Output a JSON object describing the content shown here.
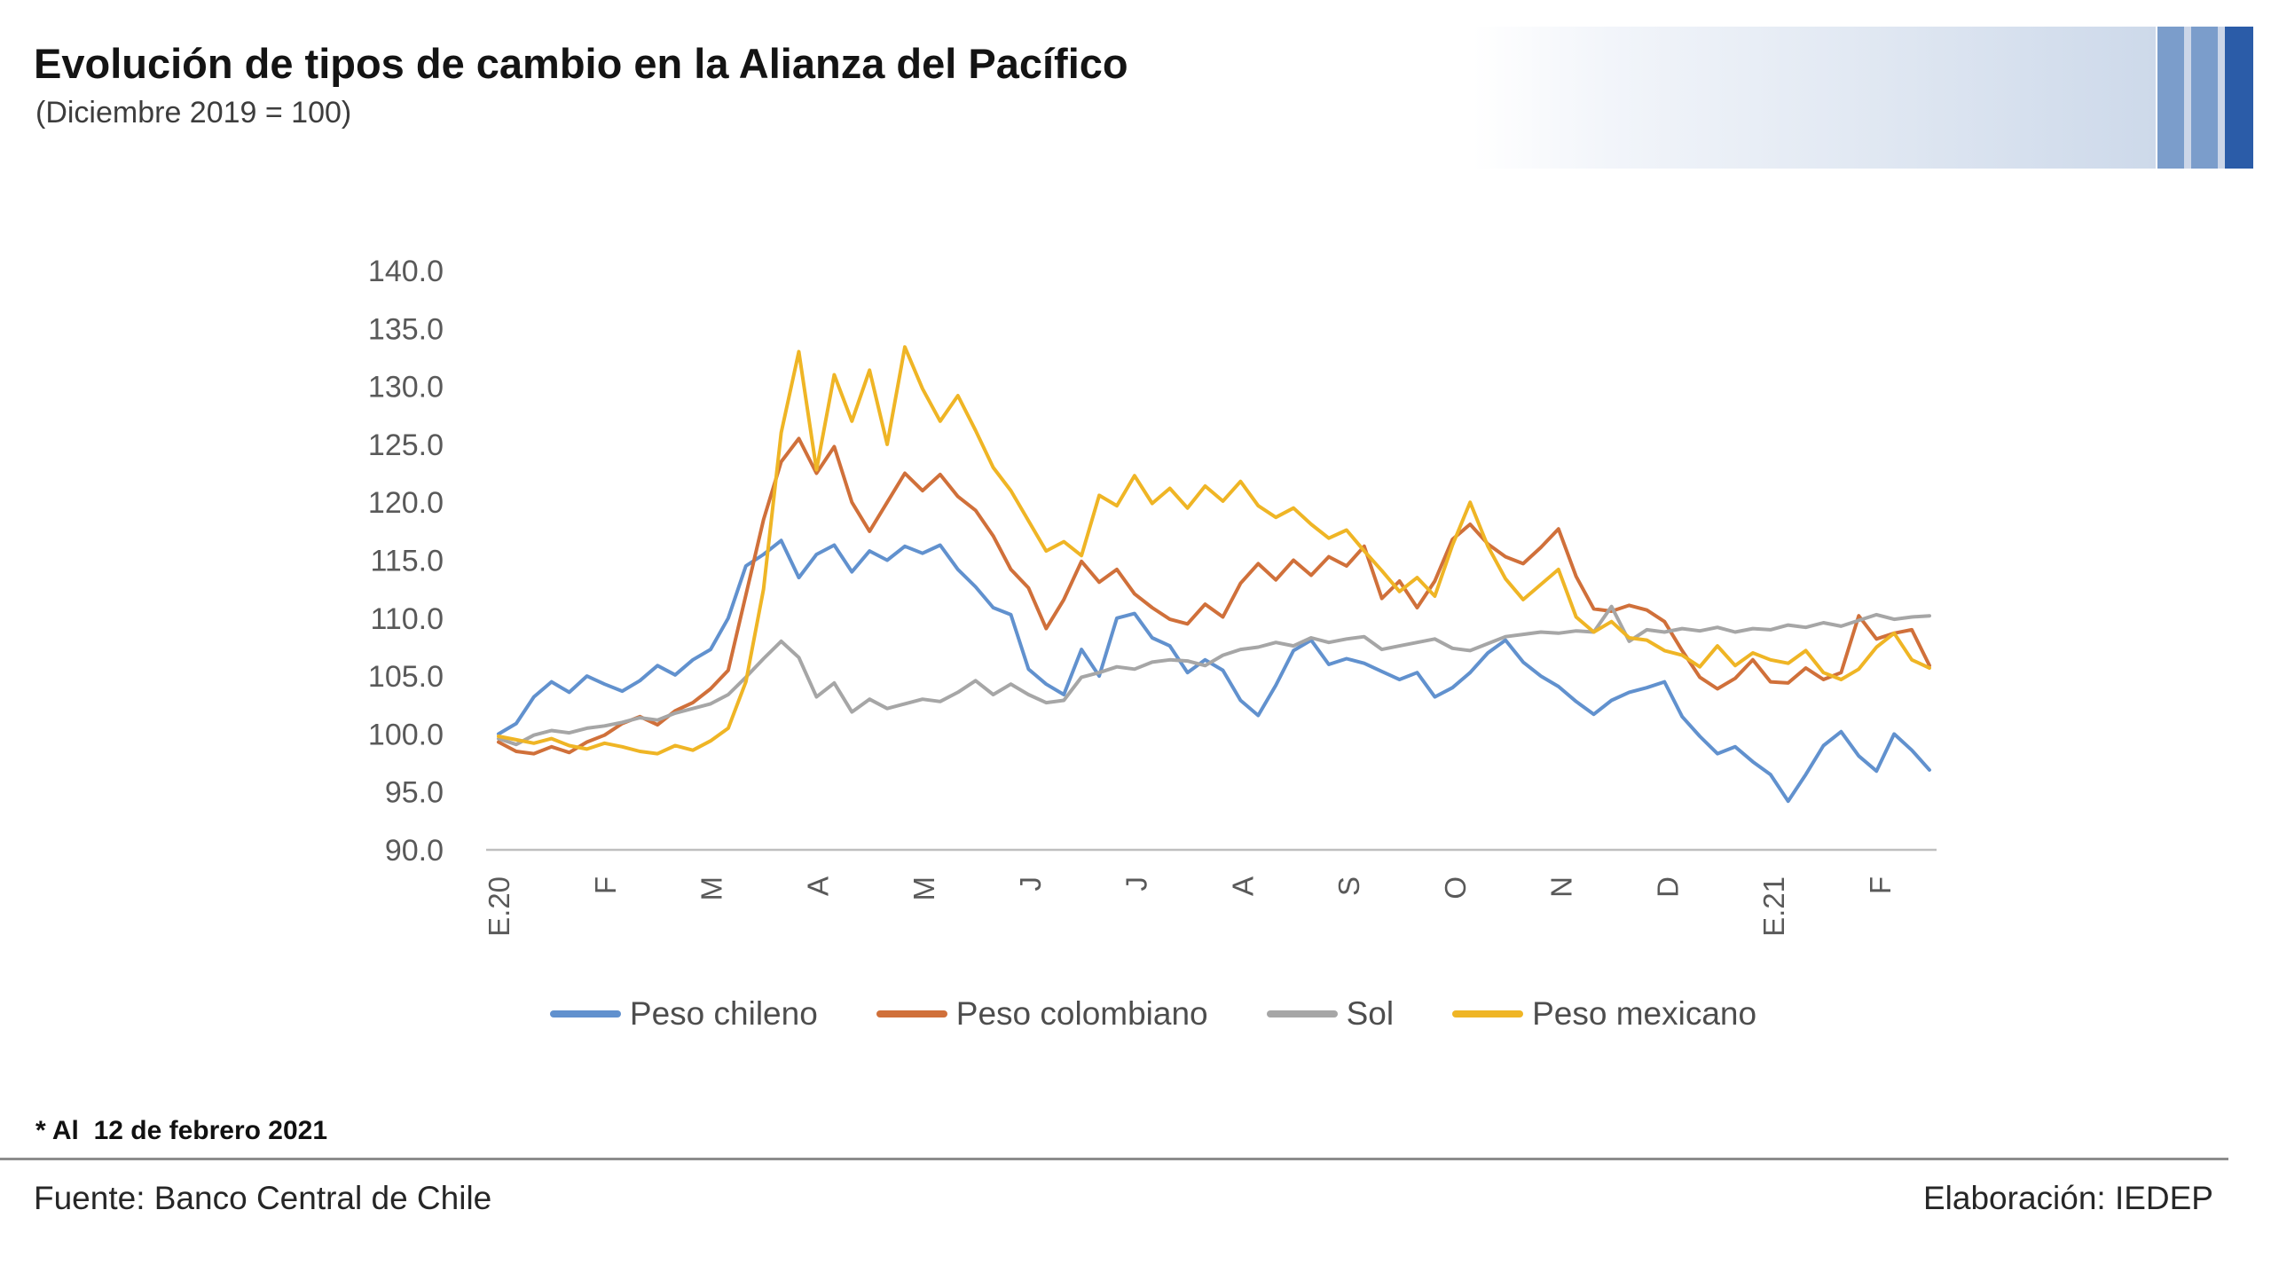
{
  "header": {
    "title": "Evolución de tipos de cambio en la Alianza del Pacífico",
    "subtitle": "(Diciembre 2019 = 100)"
  },
  "footer": {
    "footnote": "* Al  12 de febrero 2021",
    "source": "Fuente: Banco Central de Chile",
    "elaboration": "Elaboración: IEDEP"
  },
  "decor": {
    "banner_gradient_end": "#cdd9ea",
    "banner_stripe_light": "#7b9dcb",
    "banner_stripe_dark": "#2b5ca8",
    "axis_line_color": "#bfbfbf",
    "tick_label_color": "#595959"
  },
  "chart_data": {
    "type": "line",
    "title": "Evolución de tipos de cambio en la Alianza del Pacífico",
    "subtitle": "(Diciembre 2019 = 100)",
    "index_base": "Diciembre 2019 = 100",
    "x_tick_labels": [
      "E.20",
      "F",
      "M",
      "A",
      "M",
      "J",
      "J",
      "A",
      "S",
      "O",
      "N",
      "D",
      "E.21",
      "F"
    ],
    "x_description": "Daily data, enero 2020 - 12 febrero 2021 (sampled ~every 5 days)",
    "ylim": [
      90.0,
      140.0
    ],
    "ytick_step": 5.0,
    "ytick_labels": [
      "140.0",
      "135.0",
      "130.0",
      "125.0",
      "120.0",
      "115.0",
      "110.0",
      "105.0",
      "100.0",
      "95.0",
      "90.0"
    ],
    "grid": false,
    "legend_position": "bottom",
    "series": [
      {
        "name": "Peso chileno",
        "color": "#6191CE",
        "values": [
          100.0,
          100.9,
          103.2,
          104.5,
          103.6,
          105.0,
          104.3,
          103.7,
          104.6,
          105.9,
          105.1,
          106.4,
          107.3,
          110.0,
          114.5,
          115.5,
          116.7,
          113.5,
          115.5,
          116.3,
          114.0,
          115.8,
          115.0,
          116.2,
          115.6,
          116.3,
          114.2,
          112.7,
          110.9,
          110.3,
          105.6,
          104.3,
          103.4,
          107.3,
          105.0,
          110.0,
          110.4,
          108.3,
          107.6,
          105.3,
          106.4,
          105.5,
          102.9,
          101.6,
          104.2,
          107.2,
          108.1,
          106.0,
          106.5,
          106.1,
          105.4,
          104.7,
          105.3,
          103.2,
          104.0,
          105.3,
          107.0,
          108.1,
          106.2,
          105.0,
          104.1,
          102.8,
          101.7,
          102.9,
          103.6,
          104.0,
          104.5,
          101.5,
          99.8,
          98.3,
          98.9,
          97.6,
          96.5,
          94.2,
          96.5,
          99.0,
          100.2,
          98.1,
          96.8,
          100.0,
          98.6,
          96.9
        ]
      },
      {
        "name": "Peso colombiano",
        "color": "#D0703A",
        "values": [
          99.3,
          98.5,
          98.3,
          98.9,
          98.4,
          99.3,
          99.9,
          100.9,
          101.5,
          100.8,
          102.0,
          102.7,
          103.9,
          105.5,
          112.0,
          118.5,
          123.5,
          125.5,
          122.5,
          124.8,
          120.0,
          117.5,
          120.0,
          122.5,
          121.0,
          122.4,
          120.5,
          119.3,
          117.1,
          114.2,
          112.6,
          109.1,
          111.6,
          114.9,
          113.1,
          114.2,
          112.1,
          110.9,
          109.9,
          109.5,
          111.2,
          110.1,
          113.0,
          114.7,
          113.3,
          115.0,
          113.7,
          115.3,
          114.5,
          116.2,
          111.7,
          113.2,
          110.9,
          113.2,
          116.8,
          118.1,
          116.4,
          115.3,
          114.7,
          116.1,
          117.7,
          113.6,
          110.8,
          110.6,
          111.1,
          110.7,
          109.7,
          107.2,
          104.9,
          103.9,
          104.8,
          106.4,
          104.5,
          104.4,
          105.7,
          104.7,
          105.3,
          110.2,
          108.2,
          108.7,
          109.0,
          105.9
        ]
      },
      {
        "name": "Sol",
        "color": "#A6A6A6",
        "values": [
          99.6,
          99.1,
          99.9,
          100.3,
          100.1,
          100.5,
          100.7,
          101.0,
          101.4,
          101.2,
          101.8,
          102.2,
          102.6,
          103.4,
          104.9,
          106.5,
          108.0,
          106.6,
          103.2,
          104.4,
          101.9,
          103.0,
          102.2,
          102.6,
          103.0,
          102.8,
          103.6,
          104.6,
          103.4,
          104.3,
          103.4,
          102.7,
          102.9,
          104.9,
          105.3,
          105.8,
          105.6,
          106.2,
          106.4,
          106.3,
          105.9,
          106.8,
          107.3,
          107.5,
          107.9,
          107.6,
          108.3,
          107.9,
          108.2,
          108.4,
          107.3,
          107.6,
          107.9,
          108.2,
          107.4,
          107.2,
          107.8,
          108.4,
          108.6,
          108.8,
          108.7,
          108.9,
          108.8,
          111.0,
          108.0,
          109.0,
          108.8,
          109.1,
          108.9,
          109.2,
          108.8,
          109.1,
          109.0,
          109.4,
          109.2,
          109.6,
          109.3,
          109.8,
          110.3,
          109.9,
          110.1,
          110.2
        ]
      },
      {
        "name": "Peso mexicano",
        "color": "#EFB525",
        "values": [
          99.8,
          99.5,
          99.2,
          99.6,
          99.0,
          98.7,
          99.2,
          98.9,
          98.5,
          98.3,
          99.0,
          98.6,
          99.4,
          100.5,
          104.5,
          112.5,
          126.0,
          133.0,
          122.8,
          131.0,
          127.0,
          131.4,
          125.0,
          133.4,
          129.8,
          127.0,
          129.2,
          126.2,
          123.0,
          121.0,
          118.4,
          115.8,
          116.6,
          115.4,
          120.6,
          119.7,
          122.3,
          119.9,
          121.2,
          119.5,
          121.4,
          120.1,
          121.8,
          119.7,
          118.7,
          119.5,
          118.1,
          116.9,
          117.6,
          115.8,
          114.1,
          112.3,
          113.5,
          111.9,
          116.3,
          120.0,
          116.2,
          113.4,
          111.6,
          112.9,
          114.2,
          110.1,
          108.8,
          109.7,
          108.3,
          108.1,
          107.2,
          106.8,
          105.8,
          107.6,
          105.9,
          107.0,
          106.4,
          106.1,
          107.2,
          105.3,
          104.7,
          105.6,
          107.5,
          108.7,
          106.4,
          105.7
        ]
      }
    ]
  }
}
